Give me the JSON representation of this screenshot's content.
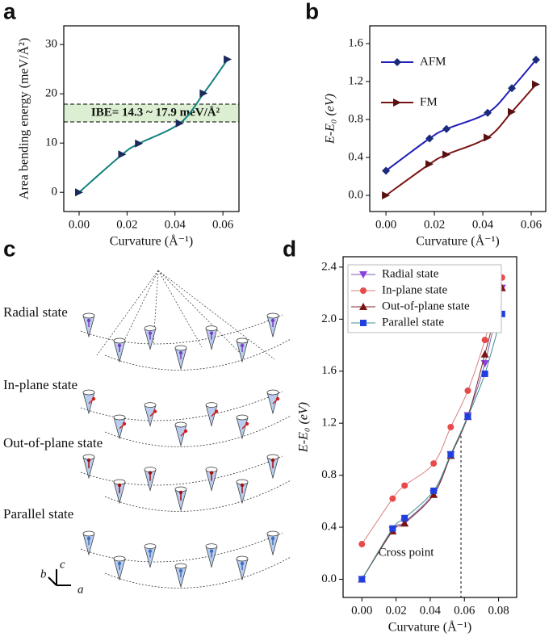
{
  "chart_data": [
    {
      "type": "line",
      "panel_label": "a",
      "x_label": "Curvature (Å⁻¹)",
      "y_label": "Area bending energy (meV/Å²)",
      "x": [
        0,
        0.018,
        0.025,
        0.042,
        0.052,
        0.062
      ],
      "series": [
        {
          "color": "#12807d",
          "marker_color": "#1b2a5c",
          "marker": "triangle-right",
          "values": [
            0,
            7.7,
            9.9,
            14.0,
            20.1,
            27.0
          ]
        }
      ],
      "band": [
        14.3,
        17.9
      ],
      "band_color": "#dcefd2",
      "annotation": "IBE= 14.3 ~ 17.9 meV/Å²",
      "xlim": [
        -0.0064,
        0.0667
      ],
      "ylim": [
        -3.9,
        33.8
      ],
      "xticks": [
        {
          "value": 0,
          "label": "0.00"
        },
        {
          "value": 0.02,
          "label": "0.02"
        },
        {
          "value": 0.04,
          "label": "0.04"
        },
        {
          "value": 0.06,
          "label": "0.06"
        }
      ],
      "yticks": [
        0,
        10,
        20,
        30
      ]
    },
    {
      "type": "line",
      "panel_label": "b",
      "x_label": "Curvature (Å⁻¹)",
      "y_label": "E-E₀ (eV)",
      "x": [
        0,
        0.018,
        0.025,
        0.042,
        0.052,
        0.062
      ],
      "series": [
        {
          "name": "AFM",
          "color": "#1f1fb8",
          "marker_color": "#1b2a7a",
          "marker": "diamond",
          "values": [
            0.26,
            0.6,
            0.7,
            0.87,
            1.13,
            1.43
          ]
        },
        {
          "name": "FM",
          "color": "#7a1414",
          "marker_color": "#5a1010",
          "marker": "triangle-right",
          "values": [
            0,
            0.33,
            0.43,
            0.61,
            0.88,
            1.17
          ]
        }
      ],
      "legend": "upper-left",
      "xlim": [
        -0.0067,
        0.066
      ],
      "ylim": [
        -0.17,
        1.787
      ],
      "xticks": [
        {
          "value": 0,
          "label": "0.00"
        },
        {
          "value": 0.02,
          "label": "0.02"
        },
        {
          "value": 0.04,
          "label": "0.04"
        },
        {
          "value": 0.06,
          "label": "0.06"
        }
      ],
      "yticks": [
        {
          "value": 0,
          "label": "0.0"
        },
        {
          "value": 0.4,
          "label": "0.4"
        },
        {
          "value": 0.8,
          "label": "0.8"
        },
        {
          "value": 1.2,
          "label": "1.2"
        },
        {
          "value": 1.6,
          "label": "1.6"
        }
      ]
    },
    {
      "type": "line",
      "panel_label": "d",
      "x_label": "Curvature (Å⁻¹)",
      "y_label": "E-E₀ (eV)",
      "x": [
        0,
        0.018,
        0.025,
        0.042,
        0.052,
        0.062,
        0.072,
        0.082
      ],
      "series": [
        {
          "name": "Radial state",
          "color": "#7f5fb0",
          "marker_color": "#8a3fe0",
          "marker": "triangle-down",
          "values": [
            0,
            0.38,
            0.44,
            0.66,
            0.96,
            1.26,
            1.66,
            2.24
          ]
        },
        {
          "name": "In-plane state",
          "color": "#d88080",
          "marker_color": "#e84a4a",
          "marker": "circle",
          "values": [
            0.27,
            0.62,
            0.72,
            0.89,
            1.17,
            1.45,
            1.84,
            2.32
          ]
        },
        {
          "name": "Out-of-plane state",
          "color": "#7a2a2a",
          "marker_color": "#7a1515",
          "marker": "triangle-up",
          "values": [
            0,
            0.37,
            0.43,
            0.65,
            0.95,
            1.25,
            1.73,
            2.24
          ]
        },
        {
          "name": "Parallel state",
          "color": "#3f8f8f",
          "marker_color": "#1f3fe0",
          "marker": "square",
          "values": [
            0,
            0.39,
            0.47,
            0.68,
            0.96,
            1.25,
            1.58,
            2.04
          ]
        }
      ],
      "legend": "upper-left",
      "cross_x": 0.058,
      "annotation": "Cross point",
      "xlim": [
        -0.011,
        0.0906
      ],
      "ylim": [
        -0.14,
        2.48
      ],
      "xticks": [
        {
          "value": 0,
          "label": "0.00"
        },
        {
          "value": 0.02,
          "label": "0.02"
        },
        {
          "value": 0.04,
          "label": "0.04"
        },
        {
          "value": 0.06,
          "label": "0.06"
        },
        {
          "value": 0.08,
          "label": "0.08"
        }
      ],
      "yticks": [
        {
          "value": 0,
          "label": "0.0"
        },
        {
          "value": 0.4,
          "label": "0.4"
        },
        {
          "value": 0.8,
          "label": "0.8"
        },
        {
          "value": 1.2,
          "label": "1.2"
        },
        {
          "value": 1.6,
          "label": "1.6"
        },
        {
          "value": 2.0,
          "label": "2.0"
        },
        {
          "value": 2.4,
          "label": "2.4"
        }
      ]
    }
  ],
  "diagram": {
    "panel_label": "c",
    "states": [
      "Radial state",
      "In-plane state",
      "Out-of-plane state",
      "Parallel state"
    ],
    "axes": [
      "b",
      "c",
      "a"
    ]
  }
}
